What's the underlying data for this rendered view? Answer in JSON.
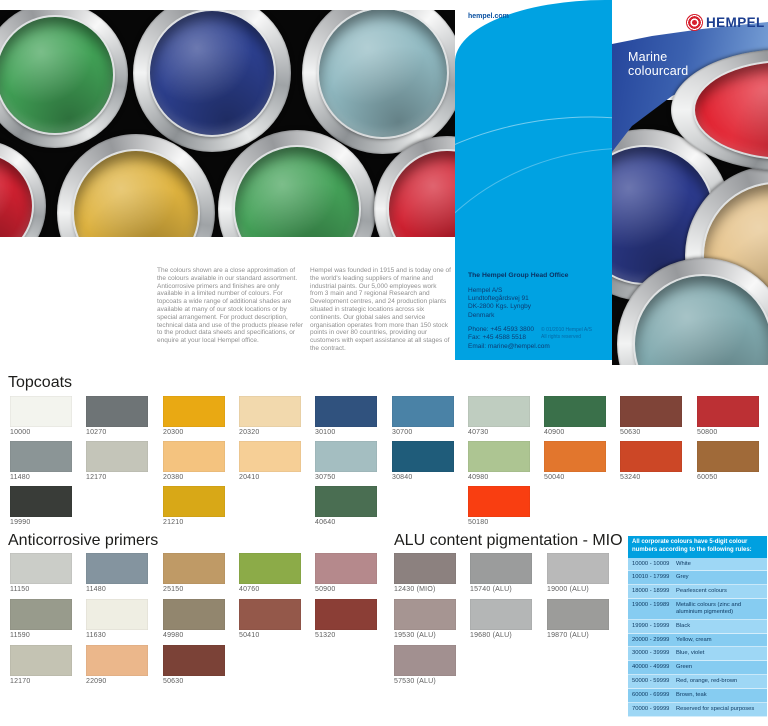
{
  "cover": {
    "site_url": "hempel.com",
    "brand": "HEMPEL",
    "title_line1": "Marine",
    "title_line2": "colourcard",
    "intro_left": "The colours shown are a close approximation of the colours available in our standard assortment. Anticorrosive primers and finishes are only available in a limited number of colours. For topcoats a wide range of additional shades are available at many of our stock locations or by special arrangement. For product description, technical data and use of the products please refer to the product data sheets and specifications, or enquire at your local Hempel office.",
    "intro_right": "Hempel was founded in 1915 and is today one of the world's leading suppliers of marine and industrial paints. Our 5,000 employees work from 3 main and 7 regional Research and Development centres, and 24 production plants situated in strategic locations across six continents. Our global sales and service organisation operates from more than 150 stock points in over 80 countries, providing our customers with expert assistance at all stages of the contract.",
    "head_office": {
      "heading": "The Hempel Group Head Office",
      "lines": [
        "Hempel A/S",
        "Lundtoftegårdsvej 91",
        "DK-2800 Kgs. Lyngby",
        "Denmark"
      ],
      "phone": "Phone: +45 4593 3800",
      "fax": "Fax: +45 4588 5518",
      "email": "Email: marine@hempel.com",
      "copyright_line1": "© 01/2010 Hempel A/S",
      "copyright_line2": "All rights reserved"
    },
    "brand_colors": {
      "cyan": "#00a2e2",
      "navy": "#1b3d8f",
      "red": "#d6212e"
    },
    "cans_left": [
      "#41a156",
      "#2c3f8e",
      "#90b9c1",
      "#d22131",
      "#deb23e",
      "#44a158",
      "#d22131"
    ],
    "cans_right": [
      "#2c3a8c",
      "#e5c289",
      "#80a9ae",
      "#e22533"
    ]
  },
  "palettes": [
    {
      "id": "topcoats",
      "title": "Topcoats",
      "rows": [
        [
          {
            "code": "10000",
            "color": "#f3f4ee"
          },
          {
            "code": "10270",
            "color": "#6e7476"
          },
          {
            "code": "20300",
            "color": "#e9a913"
          },
          {
            "code": "20320",
            "color": "#f2d9ad"
          },
          {
            "code": "30100",
            "color": "#30527e"
          },
          {
            "code": "30700",
            "color": "#4a82a6"
          },
          {
            "code": "40730",
            "color": "#bfcdc0"
          },
          {
            "code": "40900",
            "color": "#3a704a"
          },
          {
            "code": "50630",
            "color": "#7f4438"
          },
          {
            "code": "50800",
            "color": "#bc3034"
          }
        ],
        [
          {
            "code": "11480",
            "color": "#8b9596"
          },
          {
            "code": "12170",
            "color": "#c4c5b9"
          },
          {
            "code": "20380",
            "color": "#f4c37f"
          },
          {
            "code": "20410",
            "color": "#f6cf96"
          },
          {
            "code": "30750",
            "color": "#a4bec1"
          },
          {
            "code": "30840",
            "color": "#1f5c7a"
          },
          {
            "code": "40980",
            "color": "#adc592"
          },
          {
            "code": "50040",
            "color": "#e2762d"
          },
          {
            "code": "53240",
            "color": "#cc4726"
          },
          {
            "code": "60050",
            "color": "#a06a39"
          }
        ],
        [
          {
            "code": "19990",
            "color": "#393c38",
            "col": 0
          },
          {
            "code": "21210",
            "color": "#d8a817",
            "col": 2
          },
          {
            "code": "40640",
            "color": "#4a6e52",
            "col": 4
          },
          {
            "code": "50180",
            "color": "#f93e11",
            "col": 6
          }
        ]
      ]
    },
    {
      "id": "anticorrosive",
      "title": "Anticorrosive primers",
      "rows": [
        [
          {
            "code": "11150",
            "color": "#cbcdc8"
          },
          {
            "code": "11480",
            "color": "#84949f"
          },
          {
            "code": "25150",
            "color": "#bf9a66"
          },
          {
            "code": "40760",
            "color": "#8cab48"
          },
          {
            "code": "50900",
            "color": "#b5898c"
          }
        ],
        [
          {
            "code": "11590",
            "color": "#989b8c"
          },
          {
            "code": "11630",
            "color": "#efeee3"
          },
          {
            "code": "49980",
            "color": "#92866e"
          },
          {
            "code": "50410",
            "color": "#94584a"
          },
          {
            "code": "51320",
            "color": "#8b3e36"
          }
        ],
        [
          {
            "code": "12170",
            "color": "#c4c3b3"
          },
          {
            "code": "22090",
            "color": "#ebb78b"
          },
          {
            "code": "50630",
            "color": "#7b4237"
          }
        ]
      ]
    },
    {
      "id": "alu",
      "title": "ALU content pigmentation - MIO",
      "rows": [
        [
          {
            "code": "12430 (MIO)",
            "color": "#8c817f"
          },
          {
            "code": "15740 (ALU)",
            "color": "#9b9c9c"
          },
          {
            "code": "19000 (ALU)",
            "color": "#b9b9b9"
          }
        ],
        [
          {
            "code": "19530 (ALU)",
            "color": "#a69592"
          },
          {
            "code": "19680 (ALU)",
            "color": "#b4b6b6"
          },
          {
            "code": "19870 (ALU)",
            "color": "#9c9c9a"
          }
        ],
        [
          {
            "code": "57530 (ALU)",
            "color": "#a29090"
          }
        ]
      ]
    }
  ],
  "rules_table": {
    "heading": "All corporate colours have 5-digit colour numbers according to the following rules:",
    "rows": [
      {
        "range": "10000 - 10009",
        "desc": "White"
      },
      {
        "range": "10010 - 17999",
        "desc": "Grey"
      },
      {
        "range": "18000 - 18999",
        "desc": "Pearlescent colours"
      },
      {
        "range": "19000 - 19989",
        "desc": "Metallic colours (zinc and aluminium pigmented)"
      },
      {
        "range": "19990 - 19999",
        "desc": "Black"
      },
      {
        "range": "20000 - 29999",
        "desc": "Yellow, cream"
      },
      {
        "range": "30000 - 39999",
        "desc": "Blue, violet"
      },
      {
        "range": "40000 - 49999",
        "desc": "Green"
      },
      {
        "range": "50000 - 59999",
        "desc": "Red, orange, red-brown"
      },
      {
        "range": "60000 - 69999",
        "desc": "Brown, teak"
      },
      {
        "range": "70000 - 99999",
        "desc": "Reserved for special purposes"
      }
    ]
  }
}
